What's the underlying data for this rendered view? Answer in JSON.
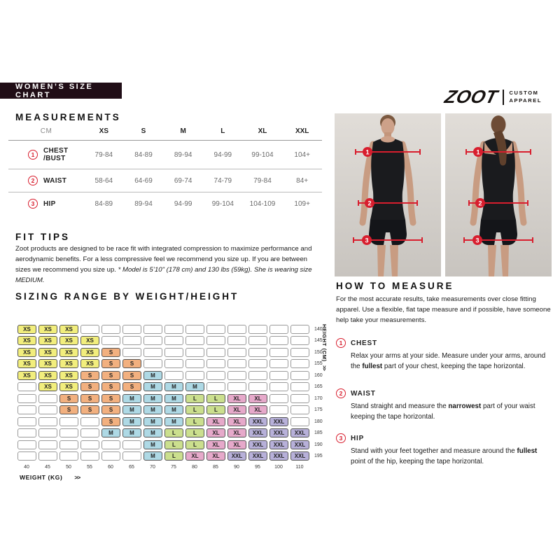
{
  "banner": {
    "title": "WOMEN’S SIZE CHART"
  },
  "logo": {
    "brand": "ZOOT",
    "tagline_line1": "CUSTOM",
    "tagline_line2": "APPAREL"
  },
  "colors": {
    "accent_red": "#d81e2e",
    "banner_bg": "#200d16"
  },
  "measurements": {
    "heading": "MEASUREMENTS",
    "unit_label": "CM",
    "columns": [
      "XS",
      "S",
      "M",
      "L",
      "XL",
      "XXL"
    ],
    "rows": [
      {
        "num": "1",
        "label": "CHEST\n/BUST",
        "values": [
          "79-84",
          "84-89",
          "89-94",
          "94-99",
          "99-104",
          "104+"
        ]
      },
      {
        "num": "2",
        "label": "WAIST",
        "values": [
          "58-64",
          "64-69",
          "69-74",
          "74-79",
          "79-84",
          "84+"
        ]
      },
      {
        "num": "3",
        "label": "HIP",
        "values": [
          "84-89",
          "89-94",
          "94-99",
          "99-104",
          "104-109",
          "109+"
        ]
      }
    ]
  },
  "fit_tips": {
    "heading": "FIT TIPS",
    "body": "Zoot products are designed to be race fit with integrated compression to maximize performance and aerodynamic benefits.   For a less compressive feel we recommend you size up.  If you are between sizes we recommend you size up.  ",
    "note": "* Model is 5’10\" (178 cm) and 130 lbs (59kg).  She is wearing size MEDIUM."
  },
  "chart_data": {
    "type": "heatmap",
    "title": "SIZING RANGE BY WEIGHT/HEIGHT",
    "xlabel": "WEIGHT (KG)",
    "ylabel": "HEIGHT (CM)",
    "x_arrow": ">>",
    "y_arrow": ">>",
    "weights": [
      "40",
      "45",
      "50",
      "55",
      "60",
      "65",
      "70",
      "75",
      "80",
      "85",
      "90",
      "95",
      "100",
      "110"
    ],
    "size_colors": {
      "XS": "#f2ee7d",
      "S": "#f2b07f",
      "M": "#aed9e5",
      "L": "#cbdf8e",
      "XL": "#e6a9ca",
      "XXL": "#b7b0d9"
    },
    "rows": [
      {
        "height": "140",
        "cells": [
          "XS",
          "XS",
          "XS",
          "",
          "",
          "",
          "",
          "",
          "",
          "",
          "",
          "",
          "",
          ""
        ]
      },
      {
        "height": "145",
        "cells": [
          "XS",
          "XS",
          "XS",
          "XS",
          "",
          "",
          "",
          "",
          "",
          "",
          "",
          "",
          "",
          ""
        ]
      },
      {
        "height": "150",
        "cells": [
          "XS",
          "XS",
          "XS",
          "XS",
          "S",
          "",
          "",
          "",
          "",
          "",
          "",
          "",
          "",
          ""
        ]
      },
      {
        "height": "155",
        "cells": [
          "XS",
          "XS",
          "XS",
          "XS",
          "S",
          "S",
          "",
          "",
          "",
          "",
          "",
          "",
          "",
          ""
        ]
      },
      {
        "height": "160",
        "cells": [
          "XS",
          "XS",
          "XS",
          "S",
          "S",
          "S",
          "M",
          "",
          "",
          "",
          "",
          "",
          "",
          ""
        ]
      },
      {
        "height": "165",
        "cells": [
          "",
          "XS",
          "XS",
          "S",
          "S",
          "S",
          "M",
          "M",
          "M",
          "",
          "",
          "",
          "",
          ""
        ]
      },
      {
        "height": "170",
        "cells": [
          "",
          "",
          "S",
          "S",
          "S",
          "M",
          "M",
          "M",
          "L",
          "L",
          "XL",
          "XL",
          "",
          ""
        ]
      },
      {
        "height": "175",
        "cells": [
          "",
          "",
          "S",
          "S",
          "S",
          "M",
          "M",
          "M",
          "L",
          "L",
          "XL",
          "XL",
          "",
          ""
        ]
      },
      {
        "height": "180",
        "cells": [
          "",
          "",
          "",
          "",
          "S",
          "M",
          "M",
          "M",
          "L",
          "XL",
          "XL",
          "XXL",
          "XXL",
          ""
        ]
      },
      {
        "height": "185",
        "cells": [
          "",
          "",
          "",
          "",
          "M",
          "M",
          "M",
          "L",
          "L",
          "XL",
          "XL",
          "XXL",
          "XXL",
          "XXL"
        ]
      },
      {
        "height": "190",
        "cells": [
          "",
          "",
          "",
          "",
          "",
          "",
          "M",
          "L",
          "L",
          "XL",
          "XL",
          "XXL",
          "XXL",
          "XXL"
        ]
      },
      {
        "height": "195",
        "cells": [
          "",
          "",
          "",
          "",
          "",
          "",
          "M",
          "L",
          "XL",
          "XL",
          "XXL",
          "XXL",
          "XXL",
          "XXL"
        ]
      }
    ]
  },
  "how_to_measure": {
    "heading": "HOW TO MEASURE",
    "intro": "For the most accurate results, take measurements over close fitting apparel.  Use a flexible, flat tape measure and if possible, have someone help take your measurements.",
    "steps": [
      {
        "num": "1",
        "label": "CHEST",
        "text_before": "Relax your arms at your side.   Measure under your arms, around the ",
        "bold": "fullest",
        "text_after": " part of your chest, keeping the tape horizontal."
      },
      {
        "num": "2",
        "label": "WAIST",
        "text_before": "Stand straight and measure the ",
        "bold": "narrowest",
        "text_after": " part of your waist keeping the tape horizontal."
      },
      {
        "num": "3",
        "label": "HIP",
        "text_before": "Stand with your feet together and measure around the ",
        "bold": "fullest",
        "text_after": " point of the hip, keeping the tape horizontal."
      }
    ]
  },
  "figure_markers": [
    "1",
    "2",
    "3"
  ]
}
